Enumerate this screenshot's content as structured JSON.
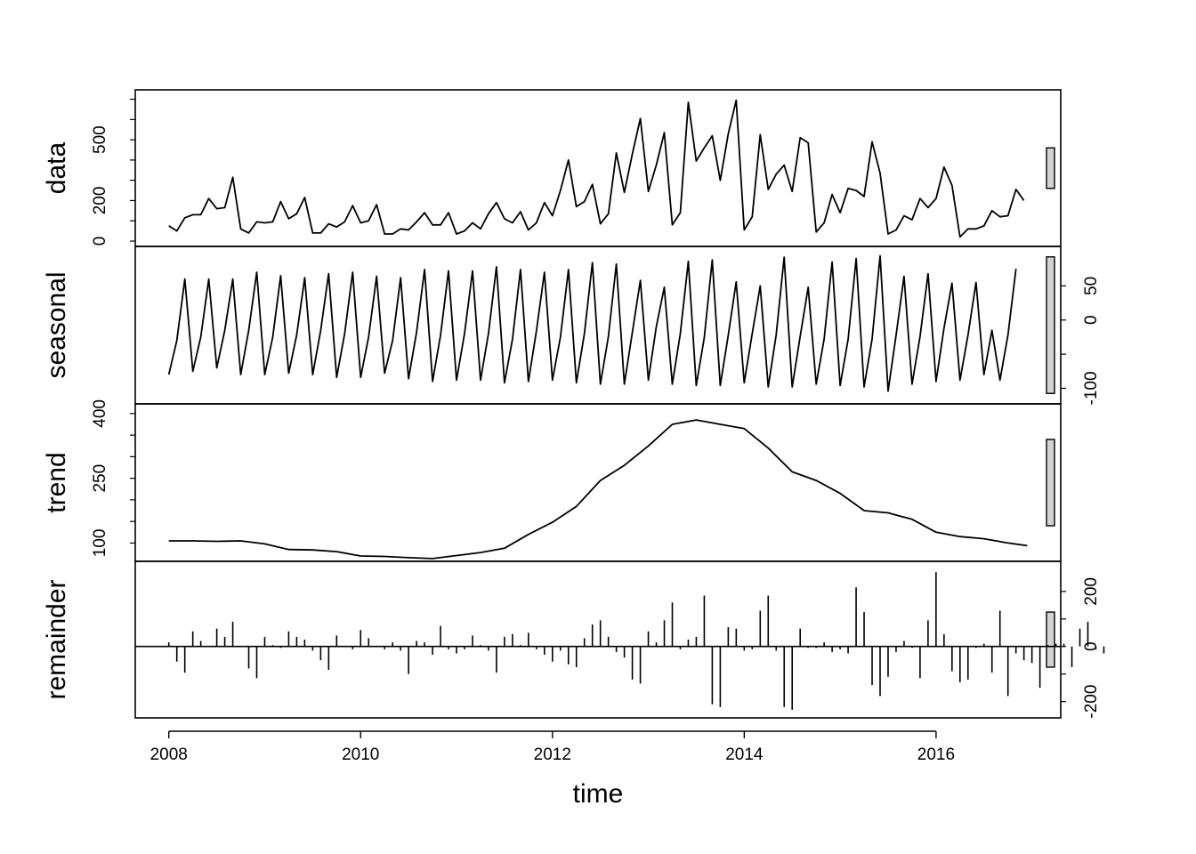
{
  "chart_data": {
    "type": "line",
    "title": "",
    "xlabel": "time",
    "xlim": [
      2007.65,
      2017.3
    ],
    "x_ticks": [
      2008,
      2010,
      2012,
      2014,
      2016
    ],
    "x_start": 2008.0,
    "x_step": 0.08333,
    "panels": [
      {
        "name": "data",
        "ylabel": "data",
        "ylim": [
          0,
          720
        ],
        "y_ticks": [
          0,
          200,
          500
        ],
        "axis_side": "left",
        "minor_ticks": [
          0,
          100,
          200,
          300,
          400,
          500,
          600,
          700
        ],
        "range_bar_height": 200,
        "values": [
          75,
          50,
          115,
          130,
          130,
          210,
          160,
          165,
          315,
          60,
          40,
          95,
          90,
          95,
          195,
          110,
          135,
          215,
          40,
          40,
          85,
          70,
          95,
          175,
          90,
          100,
          180,
          35,
          35,
          60,
          55,
          95,
          140,
          80,
          80,
          140,
          35,
          50,
          90,
          60,
          135,
          190,
          110,
          90,
          145,
          55,
          90,
          190,
          125,
          250,
          400,
          170,
          195,
          280,
          85,
          135,
          435,
          240,
          430,
          605,
          245,
          375,
          535,
          80,
          140,
          685,
          395,
          460,
          520,
          300,
          530,
          695,
          55,
          120,
          525,
          255,
          330,
          375,
          245,
          510,
          485,
          45,
          90,
          230,
          140,
          260,
          250,
          220,
          490,
          335,
          35,
          55,
          125,
          105,
          210,
          165,
          210,
          365,
          275,
          20,
          60,
          60,
          75,
          150,
          120,
          125,
          255,
          200
        ],
        "draw": "line"
      },
      {
        "name": "seasonal",
        "ylabel": "seasonal",
        "ylim": [
          -115,
          100
        ],
        "y_ticks": [
          -100,
          0,
          50
        ],
        "axis_side": "right",
        "minor_ticks": [
          -100,
          -50,
          0,
          50
        ],
        "range_bar_height": 200,
        "values": [
          -80,
          -30,
          60,
          -75,
          -25,
          60,
          -70,
          -15,
          60,
          -80,
          -15,
          70,
          -80,
          -25,
          65,
          -78,
          -22,
          62,
          -80,
          -15,
          68,
          -84,
          -20,
          70,
          -84,
          -25,
          64,
          -78,
          -30,
          62,
          -86,
          -18,
          74,
          -90,
          -22,
          72,
          -88,
          -20,
          72,
          -88,
          -20,
          78,
          -92,
          -28,
          74,
          -90,
          -16,
          70,
          -88,
          -25,
          74,
          -92,
          -20,
          84,
          -94,
          -24,
          82,
          -94,
          -18,
          58,
          -88,
          -10,
          48,
          -94,
          -20,
          86,
          -96,
          -26,
          88,
          -96,
          -22,
          56,
          -92,
          -20,
          50,
          -98,
          -22,
          92,
          -98,
          -24,
          48,
          -94,
          -28,
          85,
          -96,
          -28,
          90,
          -98,
          -28,
          94,
          -104,
          -22,
          64,
          -94,
          -24,
          68,
          -90,
          -12,
          54,
          -88,
          -22,
          55,
          -80,
          -15,
          -88,
          -22,
          75
        ],
        "draw": "line"
      },
      {
        "name": "trend",
        "ylabel": "trend",
        "ylim": [
          70,
          410
        ],
        "y_ticks": [
          100,
          250,
          400
        ],
        "axis_side": "left",
        "minor_ticks": [
          100,
          150,
          200,
          250,
          300,
          350,
          400
        ],
        "range_bar_height": 200,
        "points": [
          [
            2008.0,
            105
          ],
          [
            2008.25,
            105
          ],
          [
            2008.5,
            104
          ],
          [
            2008.75,
            105
          ],
          [
            2009.0,
            98
          ],
          [
            2009.25,
            85
          ],
          [
            2009.5,
            84
          ],
          [
            2009.75,
            80
          ],
          [
            2010.0,
            70
          ],
          [
            2010.25,
            69
          ],
          [
            2010.5,
            66
          ],
          [
            2010.75,
            64
          ],
          [
            2011.0,
            71
          ],
          [
            2011.25,
            78
          ],
          [
            2011.5,
            88
          ],
          [
            2011.75,
            120
          ],
          [
            2012.0,
            148
          ],
          [
            2012.25,
            185
          ],
          [
            2012.5,
            245
          ],
          [
            2012.75,
            280
          ],
          [
            2013.0,
            325
          ],
          [
            2013.25,
            375
          ],
          [
            2013.5,
            385
          ],
          [
            2013.75,
            375
          ],
          [
            2014.0,
            365
          ],
          [
            2014.25,
            320
          ],
          [
            2014.5,
            265
          ],
          [
            2014.75,
            245
          ],
          [
            2015.0,
            215
          ],
          [
            2015.25,
            175
          ],
          [
            2015.5,
            170
          ],
          [
            2015.75,
            155
          ],
          [
            2016.0,
            125
          ],
          [
            2016.25,
            115
          ],
          [
            2016.5,
            110
          ],
          [
            2016.75,
            100
          ],
          [
            2016.95,
            94
          ]
        ],
        "draw": "line"
      },
      {
        "name": "remainder",
        "ylabel": "remainder",
        "ylim": [
          -240,
          290
        ],
        "y_ticks": [
          -200,
          0,
          200
        ],
        "axis_side": "right",
        "minor_ticks": [
          -200,
          -100,
          0,
          100,
          200
        ],
        "range_bar_height": 200,
        "baseline": 0,
        "values": [
          15,
          -55,
          -95,
          55,
          20,
          0,
          65,
          35,
          90,
          0,
          -80,
          -115,
          35,
          5,
          -5,
          55,
          35,
          25,
          -15,
          -50,
          -85,
          40,
          0,
          -10,
          60,
          30,
          0,
          -10,
          15,
          -15,
          -100,
          20,
          15,
          -30,
          75,
          -10,
          -25,
          -10,
          40,
          5,
          -15,
          -95,
          35,
          45,
          5,
          50,
          -10,
          -30,
          -55,
          -15,
          -65,
          -75,
          30,
          80,
          95,
          35,
          -20,
          -40,
          -120,
          -135,
          55,
          15,
          95,
          160,
          -10,
          25,
          35,
          185,
          -210,
          -220,
          70,
          65,
          -15,
          -10,
          130,
          185,
          -15,
          -220,
          -230,
          65,
          -5,
          -5,
          15,
          -20,
          -10,
          -25,
          215,
          125,
          -140,
          -180,
          -110,
          -20,
          20,
          -5,
          -115,
          95,
          270,
          45,
          -90,
          -130,
          -120,
          -5,
          10,
          -95,
          130,
          -180,
          -25,
          -50,
          -60,
          -150,
          5,
          10,
          10,
          -75,
          65,
          90,
          -10,
          -25
        ],
        "draw": "spikes"
      }
    ]
  }
}
